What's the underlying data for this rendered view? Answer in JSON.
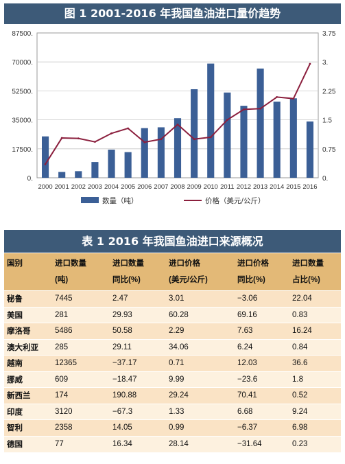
{
  "figure": {
    "title": "图 1  2001-2016 年我国鱼油进口量价趋势"
  },
  "chart_data": {
    "type": "bar",
    "categories": [
      "2000",
      "2001",
      "2002",
      "2003",
      "2004",
      "2005",
      "2006",
      "2007",
      "2008",
      "2009",
      "2010",
      "2011",
      "2012",
      "2013",
      "2014",
      "2015",
      "2016"
    ],
    "series": [
      {
        "name": "数量（吨）",
        "type": "bar",
        "axis": "left",
        "color": "#3b5f96",
        "values": [
          25000,
          3500,
          4000,
          9500,
          17000,
          15500,
          30000,
          30500,
          36000,
          53500,
          69000,
          51500,
          43500,
          66000,
          46000,
          48000,
          34000
        ]
      },
      {
        "name": "价格（美元/公斤）",
        "type": "line",
        "axis": "right",
        "color": "#8b1f3d",
        "values": [
          0.35,
          1.03,
          1.02,
          0.93,
          1.15,
          1.28,
          0.92,
          1.0,
          1.38,
          1.0,
          1.05,
          1.5,
          1.77,
          1.79,
          2.09,
          2.05,
          2.95
        ]
      }
    ],
    "y_left": {
      "ylim": [
        0,
        87500
      ],
      "ticks": [
        "0.",
        "17500.",
        "35000.",
        "52500.",
        "70000.",
        "87500."
      ]
    },
    "y_right": {
      "ylim": [
        0,
        3.75
      ],
      "ticks": [
        "0.",
        "0.75",
        "1.5",
        "2.25",
        "3.",
        "3.75"
      ]
    },
    "grid": true,
    "legend": "bottom"
  },
  "table": {
    "title": "表 1  2016 年我国鱼油进口来源概况",
    "headers": [
      [
        "国别",
        ""
      ],
      [
        "进口数量",
        "(吨)"
      ],
      [
        "进口数量",
        "同比(%)"
      ],
      [
        "进口价格",
        "(美元/公斤)"
      ],
      [
        "进口价格",
        "同比(%)"
      ],
      [
        "进口数量",
        "占比(%)"
      ]
    ],
    "rows": [
      [
        "秘鲁",
        "7445",
        "2.47",
        "3.01",
        "−3.06",
        "22.04"
      ],
      [
        "美国",
        "281",
        "29.93",
        "60.28",
        "69.16",
        "0.83"
      ],
      [
        "摩洛哥",
        "5486",
        "50.58",
        "2.29",
        "7.63",
        "16.24"
      ],
      [
        "澳大利亚",
        "285",
        "29.11",
        "34.06",
        "6.24",
        "0.84"
      ],
      [
        "越南",
        "12365",
        "−37.17",
        "0.71",
        "12.03",
        "36.6"
      ],
      [
        "挪威",
        "609",
        "−18.47",
        "9.99",
        "−23.6",
        "1.8"
      ],
      [
        "新西兰",
        "174",
        "190.88",
        "29.24",
        "70.41",
        "0.52"
      ],
      [
        "印度",
        "3120",
        "−67.3",
        "1.33",
        "6.68",
        "9.24"
      ],
      [
        "智利",
        "2358",
        "14.05",
        "0.99",
        "−6.37",
        "6.98"
      ],
      [
        "德国",
        "77",
        "16.34",
        "28.14",
        "−31.64",
        "0.23"
      ]
    ]
  }
}
